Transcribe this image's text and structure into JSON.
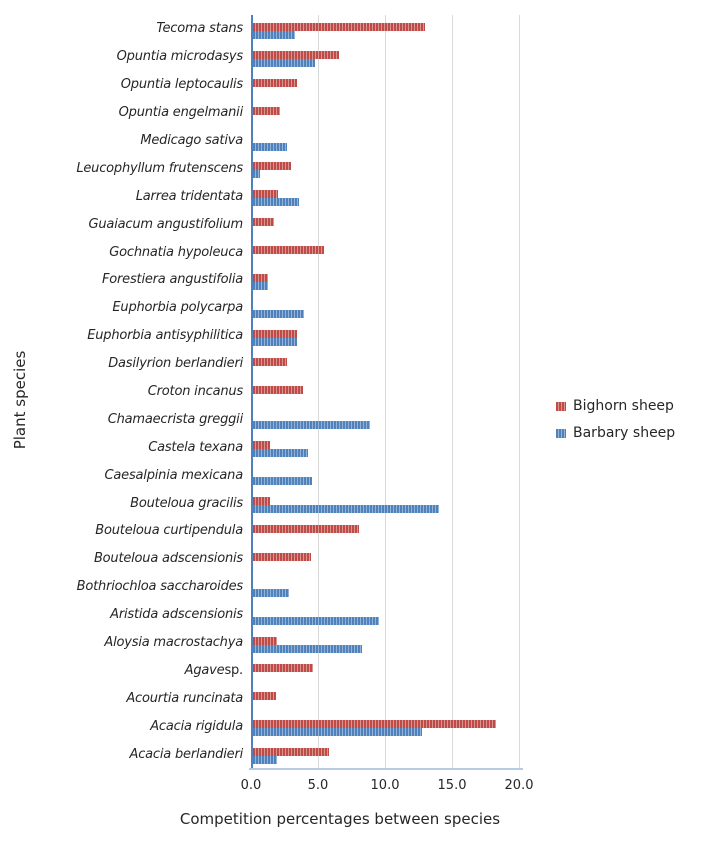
{
  "colors": {
    "bighorn_red": "#bf4b47",
    "bighorn_red_light": "#d89492",
    "barbary_blue": "#4f81bd",
    "barbary_blue_light": "#95b3d7",
    "axis_line_blue": "#4f81bd",
    "baseline_light_blue": "#b7cce4",
    "gridline_gray": "#d9d9d9",
    "text": "#262626"
  },
  "chart_data": {
    "type": "bar",
    "orientation": "horizontal",
    "title": "",
    "xlabel": "Competition percentages between species",
    "ylabel": "Plant species",
    "xlim": [
      0,
      20
    ],
    "xticks": [
      "0.0",
      "5.0",
      "10.0",
      "15.0",
      "20.0"
    ],
    "xtick_values": [
      0,
      5,
      10,
      15,
      20
    ],
    "grid": "vertical-only",
    "legend_position": "right-middle",
    "categories": [
      {
        "italic": "Tecoma stans",
        "roman": ""
      },
      {
        "italic": "Opuntia microdasys",
        "roman": ""
      },
      {
        "italic": "Opuntia leptocaulis",
        "roman": ""
      },
      {
        "italic": "Opuntia engelmanii",
        "roman": ""
      },
      {
        "italic": "Medicago sativa",
        "roman": ""
      },
      {
        "italic": "Leucophyllum frutenscens",
        "roman": ""
      },
      {
        "italic": "Larrea tridentata",
        "roman": ""
      },
      {
        "italic": "Guaiacum angustifolium",
        "roman": ""
      },
      {
        "italic": "Gochnatia hypoleuca",
        "roman": ""
      },
      {
        "italic": "Forestiera angustifolia",
        "roman": ""
      },
      {
        "italic": "Euphorbia polycarpa",
        "roman": ""
      },
      {
        "italic": "Euphorbia antisyphilitica",
        "roman": ""
      },
      {
        "italic": "Dasilyrion berlandieri",
        "roman": ""
      },
      {
        "italic": "Croton incanus",
        "roman": ""
      },
      {
        "italic": "Chamaecrista greggii",
        "roman": ""
      },
      {
        "italic": "Castela texana",
        "roman": ""
      },
      {
        "italic": "Caesalpinia mexicana",
        "roman": ""
      },
      {
        "italic": "Bouteloua gracilis",
        "roman": ""
      },
      {
        "italic": "Bouteloua curtipendula",
        "roman": ""
      },
      {
        "italic": "Bouteloua adscensionis",
        "roman": ""
      },
      {
        "italic": "Bothriochloa saccharoides",
        "roman": ""
      },
      {
        "italic": "Aristida adscensionis",
        "roman": ""
      },
      {
        "italic": "Aloysia macrostachya",
        "roman": ""
      },
      {
        "italic": "Agave",
        "roman": " sp."
      },
      {
        "italic": "Acourtia runcinata",
        "roman": ""
      },
      {
        "italic": "Acacia rigidula",
        "roman": ""
      },
      {
        "italic": "Acacia berlandieri",
        "roman": ""
      }
    ],
    "series": [
      {
        "name": "Bighorn sheep",
        "color": "#bf4b47",
        "values": [
          12.8,
          6.4,
          3.3,
          2.0,
          0,
          2.8,
          1.9,
          1.6,
          5.3,
          1.1,
          0,
          3.3,
          2.5,
          3.7,
          0,
          1.3,
          0,
          1.3,
          7.9,
          4.3,
          0,
          0,
          1.8,
          4.5,
          1.7,
          18.1,
          5.7
        ]
      },
      {
        "name": "Barbary sheep",
        "color": "#4f81bd",
        "values": [
          3.1,
          4.6,
          0,
          0,
          2.5,
          0.5,
          3.4,
          0,
          0,
          1.1,
          3.8,
          3.3,
          0,
          0,
          8.7,
          4.1,
          4.4,
          13.9,
          0,
          0,
          2.7,
          9.4,
          8.1,
          0,
          0,
          12.6,
          1.8
        ]
      }
    ]
  }
}
